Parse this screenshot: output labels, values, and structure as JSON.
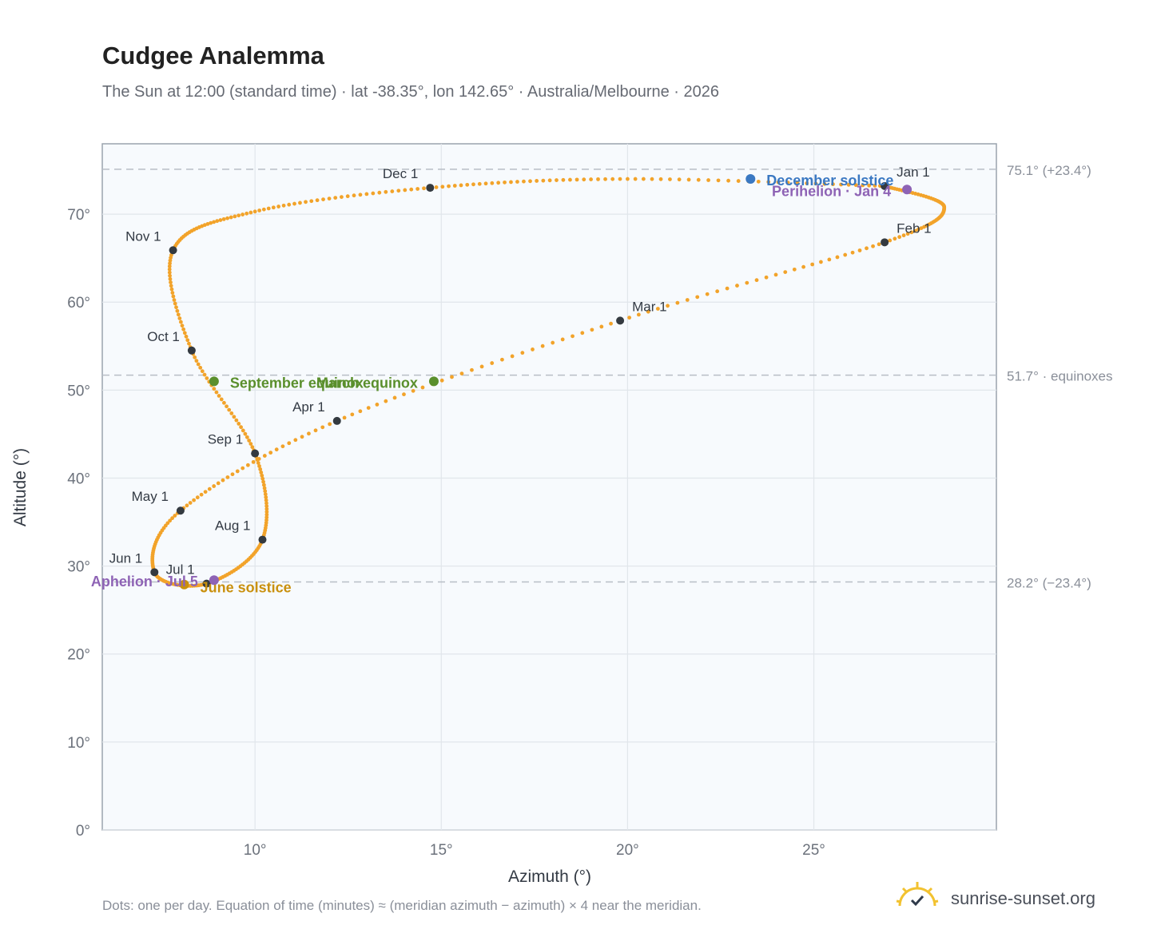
{
  "header": {
    "title": "Cudgee Analemma",
    "subtitle": "The Sun at 12:00 (standard time) · lat -38.35°, lon 142.65° · Australia/Melbourne · 2026"
  },
  "footer": {
    "note": "Dots: one per day. Equation of time (minutes) ≈ (meridian azimuth − azimuth) × 4 near the meridian.",
    "brand": "sunrise-sunset.org",
    "brand_icon": "sun-check-icon"
  },
  "colors": {
    "path": "#f2a32a",
    "month_marker": "#343a40",
    "equinox": "#5a8f2c",
    "december_solstice": "#3a78c2",
    "june_solstice": "#c9900e",
    "perihelion_aphelion": "#8e63b5",
    "reference_line": "#b8bec6",
    "plot_background": "#f7fafd"
  },
  "chart_data": {
    "type": "scatter",
    "xlabel": "Azimuth (°)",
    "ylabel": "Altitude (°)",
    "xlim": [
      5.9,
      29.9
    ],
    "ylim": [
      0,
      78
    ],
    "x_ticks": [
      10,
      15,
      20,
      25
    ],
    "x_tick_labels": [
      "10°",
      "15°",
      "20°",
      "25°"
    ],
    "y_ticks": [
      0,
      10,
      20,
      30,
      40,
      50,
      60,
      70
    ],
    "y_tick_labels": [
      "0°",
      "10°",
      "20°",
      "30°",
      "40°",
      "50°",
      "60°",
      "70°"
    ],
    "grid": true,
    "series": [
      {
        "kind": "daily-path",
        "points": [
          [
            26.9,
            73.2
          ],
          [
            28.5,
            70.8
          ],
          [
            26.9,
            66.8
          ],
          [
            19.8,
            57.9
          ],
          [
            12.2,
            46.5
          ],
          [
            8.0,
            36.3
          ],
          [
            7.3,
            29.3
          ],
          [
            8.7,
            28.0
          ],
          [
            10.2,
            33.0
          ],
          [
            10.0,
            42.8
          ],
          [
            8.3,
            54.5
          ],
          [
            7.8,
            65.9
          ],
          [
            10.0,
            70.3
          ],
          [
            14.7,
            73.0
          ],
          [
            20.0,
            74.0
          ],
          [
            26.9,
            73.2
          ]
        ]
      }
    ],
    "month_markers": [
      {
        "label": "Jan 1",
        "x": 26.9,
        "y": 73.2,
        "label_side": "right"
      },
      {
        "label": "Feb 1",
        "x": 26.9,
        "y": 66.8,
        "label_side": "right"
      },
      {
        "label": "Mar 1",
        "x": 19.8,
        "y": 57.9,
        "label_side": "right"
      },
      {
        "label": "Apr 1",
        "x": 12.2,
        "y": 46.5,
        "label_side": "left"
      },
      {
        "label": "May 1",
        "x": 8.0,
        "y": 36.3,
        "label_side": "left"
      },
      {
        "label": "Jun 1",
        "x": 7.3,
        "y": 29.3,
        "label_side": "left"
      },
      {
        "label": "Jul 1",
        "x": 8.7,
        "y": 28.0,
        "label_side": "left"
      },
      {
        "label": "Aug 1",
        "x": 10.2,
        "y": 33.0,
        "label_side": "left"
      },
      {
        "label": "Sep 1",
        "x": 10.0,
        "y": 42.8,
        "label_side": "left"
      },
      {
        "label": "Oct 1",
        "x": 8.3,
        "y": 54.5,
        "label_side": "left"
      },
      {
        "label": "Nov 1",
        "x": 7.8,
        "y": 65.9,
        "label_side": "left"
      },
      {
        "label": "Dec 1",
        "x": 14.7,
        "y": 73.0,
        "label_side": "left"
      }
    ],
    "events": [
      {
        "label": "December solstice",
        "x": 23.3,
        "y": 74.0,
        "color_key": "december_solstice"
      },
      {
        "label": "Perihelion · Jan 4",
        "x": 27.5,
        "y": 72.8,
        "color_key": "perihelion_aphelion"
      },
      {
        "label": "September equinox",
        "x": 8.9,
        "y": 51.0,
        "color_key": "equinox"
      },
      {
        "label": "March equinox",
        "x": 14.8,
        "y": 51.0,
        "color_key": "equinox"
      },
      {
        "label": "June solstice",
        "x": 8.1,
        "y": 27.9,
        "color_key": "june_solstice"
      },
      {
        "label": "Aphelion · Jul 5",
        "x": 8.9,
        "y": 28.4,
        "color_key": "perihelion_aphelion"
      }
    ],
    "reference_lines": [
      {
        "y": 75.1,
        "label": "75.1° (+23.4°)"
      },
      {
        "y": 51.7,
        "label": "51.7° · equinoxes"
      },
      {
        "y": 28.2,
        "label": "28.2° (−23.4°)"
      }
    ]
  }
}
